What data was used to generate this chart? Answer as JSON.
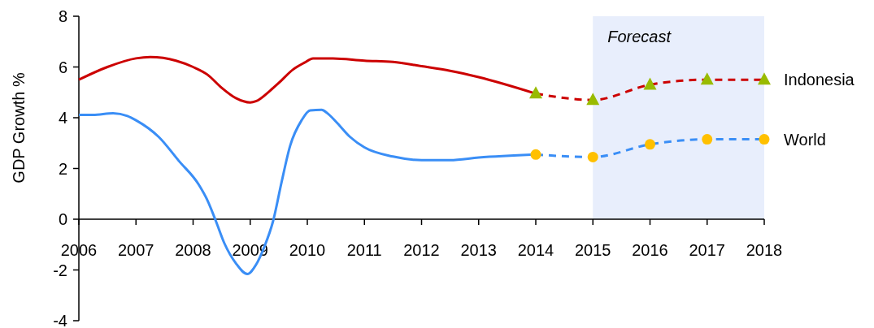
{
  "chart_data": {
    "type": "line",
    "ylabel": "GDP Growth %",
    "xlim": [
      2006,
      2018
    ],
    "xticks": [
      2006,
      2007,
      2008,
      2009,
      2010,
      2011,
      2012,
      2013,
      2014,
      2015,
      2016,
      2017,
      2018
    ],
    "ylim": [
      -4,
      8
    ],
    "yticks": [
      -4,
      -2,
      0,
      2,
      4,
      6,
      8
    ],
    "grid": false,
    "bands": [
      {
        "axis": "x",
        "from": 2015,
        "to": 2018,
        "label": "Forecast",
        "color": "#e8eefc"
      }
    ],
    "series": [
      {
        "color": "#cc0000",
        "line_style": "solid",
        "x": [
          2006,
          2006.5,
          2007,
          2007.25,
          2007.7,
          2008,
          2008.25,
          2008.5,
          2008.75,
          2009,
          2009.1,
          2009.35,
          2009.5,
          2009.75,
          2009.95,
          2010.1,
          2010.45,
          2011,
          2011.5,
          2012,
          2012.5,
          2013,
          2014
        ],
        "values": [
          5.5,
          6.0,
          6.34,
          6.39,
          6.25,
          6.0,
          5.7,
          5.18,
          4.77,
          4.6,
          4.65,
          5.07,
          5.37,
          5.9,
          6.17,
          6.34,
          6.34,
          6.25,
          6.2,
          6.03,
          5.85,
          5.6,
          4.95
        ]
      },
      {
        "name": "Indonesia",
        "color": "#cc0000",
        "line_style": "dashed",
        "x": [
          2014,
          2015,
          2016,
          2017,
          2018
        ],
        "values": [
          4.95,
          4.7,
          5.3,
          5.5,
          5.5
        ]
      },
      {
        "type": "scatter",
        "color": "#99bb00",
        "marker": "triangle",
        "x": [
          2014,
          2015,
          2016,
          2017,
          2018
        ],
        "values": [
          4.95,
          4.7,
          5.3,
          5.5,
          5.5
        ]
      },
      {
        "color": "#3a8ef6",
        "line_style": "solid",
        "x": [
          2006,
          2006.25,
          2006.6,
          2006.85,
          2007,
          2007.4,
          2007.75,
          2008.1,
          2008.25,
          2008.4,
          2008.55,
          2008.75,
          2008.95,
          2009.1,
          2009.25,
          2009.4,
          2009.55,
          2009.7,
          2009.9,
          2010.05,
          2010.25,
          2010.35,
          2010.5,
          2010.75,
          2011,
          2011.5,
          2012,
          2012.5,
          2013,
          2014
        ],
        "values": [
          4.11,
          4.11,
          4.18,
          4.07,
          3.9,
          3.24,
          2.3,
          1.36,
          0.75,
          -0.08,
          -0.96,
          -1.74,
          -2.16,
          -1.8,
          -1.07,
          -0.08,
          1.47,
          2.9,
          3.9,
          4.29,
          4.31,
          4.18,
          3.85,
          3.24,
          2.83,
          2.47,
          2.33,
          2.33,
          2.43,
          2.55
        ]
      },
      {
        "name": "World",
        "color": "#3a8ef6",
        "line_style": "dashed",
        "x": [
          2014,
          2015,
          2016,
          2017,
          2018
        ],
        "values": [
          2.55,
          2.45,
          2.95,
          3.15,
          3.15
        ]
      },
      {
        "type": "scatter",
        "color": "#ffc000",
        "marker": "circle",
        "x": [
          2014,
          2015,
          2016,
          2017,
          2018
        ],
        "values": [
          2.55,
          2.45,
          2.95,
          3.15,
          3.15
        ]
      }
    ]
  }
}
